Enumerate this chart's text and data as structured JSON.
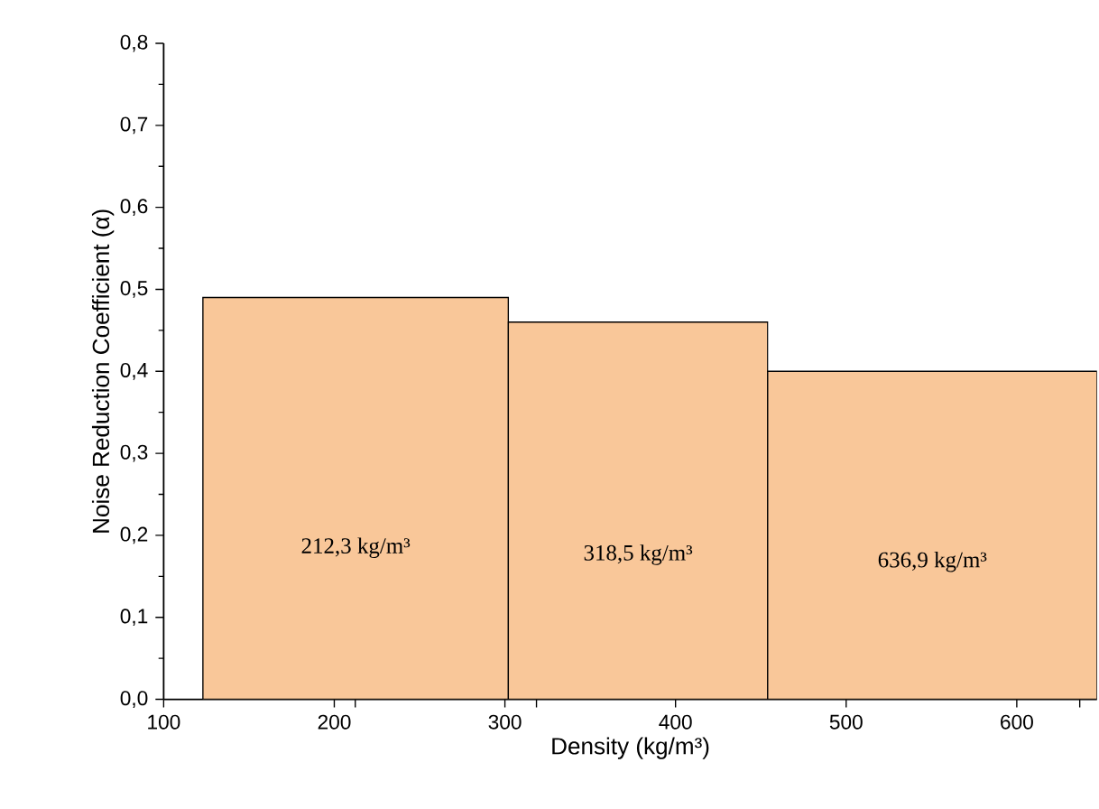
{
  "chart_data": {
    "type": "histogram",
    "xlabel": "Density (kg/m³)",
    "ylabel": "Noise Reduction Coefficient (α)",
    "bins": [
      123,
      302,
      454,
      647
    ],
    "values": [
      0.49,
      0.46,
      0.4
    ],
    "color": "#f9c799",
    "xlim": [
      100,
      647
    ],
    "ylim": [
      0,
      0.8
    ],
    "xticks": [
      100,
      200,
      300,
      400,
      500,
      600,
      {
        "value": 212.3,
        "label": null
      },
      {
        "value": 318.5,
        "label": null
      },
      {
        "value": 636.9,
        "label": null
      }
    ],
    "yticks": [
      {
        "value": 0,
        "label": "0,0"
      },
      {
        "value": 0.1,
        "label": "0,1"
      },
      {
        "value": 0.2,
        "label": "0,2"
      },
      {
        "value": 0.3,
        "label": "0,3"
      },
      {
        "value": 0.4,
        "label": "0,4"
      },
      {
        "value": 0.5,
        "label": "0,5"
      },
      {
        "value": 0.6,
        "label": "0,6"
      },
      {
        "value": 0.7,
        "label": "0,7"
      },
      {
        "value": 0.8,
        "label": "0,8"
      }
    ],
    "annotations": [
      "212,3 kg/m³",
      "318,5 kg/m³",
      "636,9 kg/m³"
    ],
    "grid": false
  }
}
